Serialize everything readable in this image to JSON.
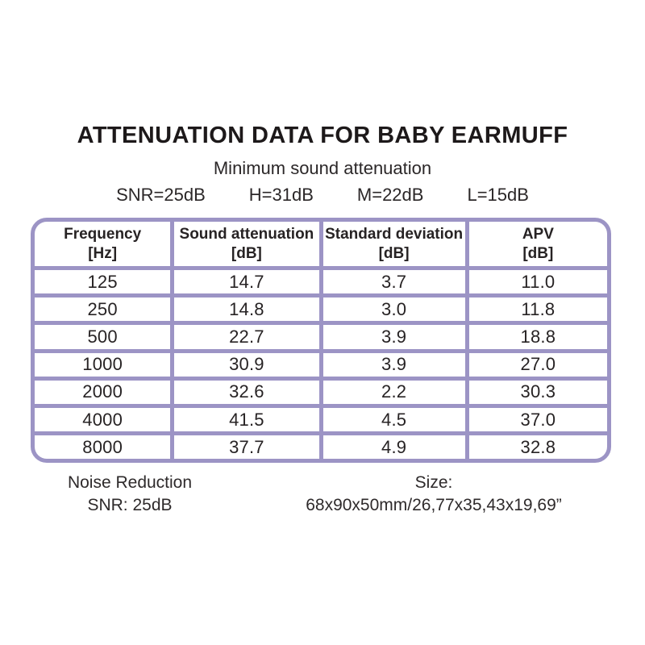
{
  "colors": {
    "background": "#ffffff",
    "text": "#272324",
    "table_border_purple": "#9c94c5"
  },
  "header": {
    "title": "ATTENUATION DATA FOR BABY EARMUFF",
    "subtitle": "Minimum sound attenuation",
    "specs": [
      "SNR=25dB",
      "H=31dB",
      "M=22dB",
      "L=15dB"
    ]
  },
  "chart_data": {
    "type": "table",
    "title": "ATTENUATION DATA FOR BABY EARMUFF",
    "subtitle": "Minimum sound attenuation",
    "summary": [
      "SNR=25dB",
      "H=31dB",
      "M=22dB",
      "L=15dB"
    ],
    "columns": [
      {
        "name": "Frequency",
        "unit": "[Hz]"
      },
      {
        "name": "Sound attenuation",
        "unit": "[dB]"
      },
      {
        "name": "Standard deviation",
        "unit": "[dB]"
      },
      {
        "name": "APV",
        "unit": "[dB]"
      }
    ],
    "rows": [
      [
        "125",
        "14.7",
        "3.7",
        "11.0"
      ],
      [
        "250",
        "14.8",
        "3.0",
        "11.8"
      ],
      [
        "500",
        "22.7",
        "3.9",
        "18.8"
      ],
      [
        "1000",
        "30.9",
        "3.9",
        "27.0"
      ],
      [
        "2000",
        "32.6",
        "2.2",
        "30.3"
      ],
      [
        "4000",
        "41.5",
        "4.5",
        "37.0"
      ],
      [
        "8000",
        "37.7",
        "4.9",
        "32.8"
      ]
    ]
  },
  "footer": {
    "noise_reduction": {
      "line1": "Noise Reduction",
      "line2": "SNR: 25dB"
    },
    "size": {
      "line1": "Size:",
      "line2": "68x90x50mm/26,77x35,43x19,69”"
    }
  }
}
